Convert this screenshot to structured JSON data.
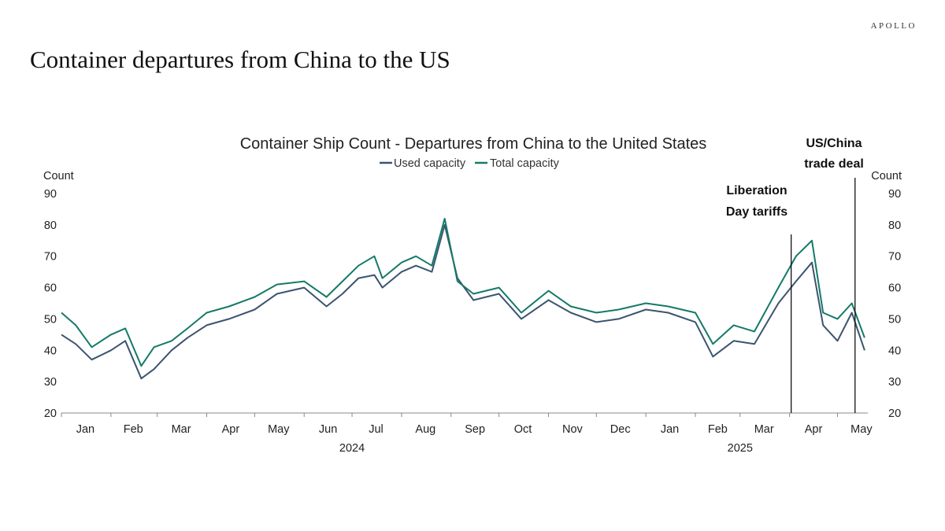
{
  "brand": "APOLLO",
  "page_title": "Container departures from China to the US",
  "chart_data": {
    "type": "line",
    "title": "Container Ship Count - Departures from China to the United States",
    "left_unit_label": "Count",
    "right_unit_label": "Count",
    "ylim": [
      20,
      90
    ],
    "yticks": [
      20,
      30,
      40,
      50,
      60,
      70,
      80,
      90
    ],
    "xlim": [
      "2024-01-01",
      "2025-05-20"
    ],
    "month_labels": [
      {
        "label": "Jan",
        "date": "2024-01-16"
      },
      {
        "label": "Feb",
        "date": "2024-02-15"
      },
      {
        "label": "Mar",
        "date": "2024-03-16"
      },
      {
        "label": "Apr",
        "date": "2024-04-16"
      },
      {
        "label": "May",
        "date": "2024-05-16"
      },
      {
        "label": "Jun",
        "date": "2024-06-16"
      },
      {
        "label": "Jul",
        "date": "2024-07-16"
      },
      {
        "label": "Aug",
        "date": "2024-08-16"
      },
      {
        "label": "Sep",
        "date": "2024-09-16"
      },
      {
        "label": "Oct",
        "date": "2024-10-16"
      },
      {
        "label": "Nov",
        "date": "2024-11-16"
      },
      {
        "label": "Dec",
        "date": "2024-12-16"
      },
      {
        "label": "Jan",
        "date": "2025-01-16"
      },
      {
        "label": "Feb",
        "date": "2025-02-15"
      },
      {
        "label": "Mar",
        "date": "2025-03-16"
      },
      {
        "label": "Apr",
        "date": "2025-04-16"
      },
      {
        "label": "May",
        "date": "2025-05-16"
      }
    ],
    "year_labels": [
      {
        "label": "2024",
        "date": "2024-07-01"
      },
      {
        "label": "2025",
        "date": "2025-03-01"
      }
    ],
    "x": [
      "2024-01-01",
      "2024-01-10",
      "2024-01-20",
      "2024-02-01",
      "2024-02-10",
      "2024-02-20",
      "2024-02-28",
      "2024-03-10",
      "2024-03-20",
      "2024-04-01",
      "2024-04-15",
      "2024-05-01",
      "2024-05-15",
      "2024-06-01",
      "2024-06-15",
      "2024-06-25",
      "2024-07-05",
      "2024-07-15",
      "2024-07-20",
      "2024-08-01",
      "2024-08-10",
      "2024-08-20",
      "2024-08-28",
      "2024-09-05",
      "2024-09-15",
      "2024-10-01",
      "2024-10-15",
      "2024-11-01",
      "2024-11-15",
      "2024-12-01",
      "2024-12-15",
      "2025-01-01",
      "2025-01-15",
      "2025-02-01",
      "2025-02-12",
      "2025-02-25",
      "2025-03-10",
      "2025-03-25",
      "2025-04-05",
      "2025-04-15",
      "2025-04-22",
      "2025-05-01",
      "2025-05-10",
      "2025-05-18"
    ],
    "series": [
      {
        "name": "Used capacity",
        "color": "#3c5470",
        "values": [
          45,
          42,
          37,
          40,
          43,
          31,
          34,
          40,
          44,
          48,
          50,
          53,
          58,
          60,
          54,
          58,
          63,
          64,
          60,
          65,
          67,
          65,
          80,
          63,
          56,
          58,
          50,
          56,
          52,
          49,
          50,
          53,
          52,
          49,
          38,
          43,
          42,
          55,
          62,
          68,
          48,
          43,
          52,
          40
        ]
      },
      {
        "name": "Total capacity",
        "color": "#147a68",
        "values": [
          52,
          48,
          41,
          45,
          47,
          35,
          41,
          43,
          47,
          52,
          54,
          57,
          61,
          62,
          57,
          62,
          67,
          70,
          63,
          68,
          70,
          67,
          82,
          62,
          58,
          60,
          52,
          59,
          54,
          52,
          53,
          55,
          54,
          52,
          42,
          48,
          46,
          60,
          70,
          75,
          52,
          50,
          55,
          44
        ]
      }
    ],
    "annotations": [
      {
        "label_lines": [
          "Liberation",
          "Day tariffs"
        ],
        "date": "2025-04-02"
      },
      {
        "label_lines": [
          "US/China",
          "trade deal"
        ],
        "date": "2025-05-12"
      }
    ],
    "legend_position": "top-center",
    "grid": false
  }
}
